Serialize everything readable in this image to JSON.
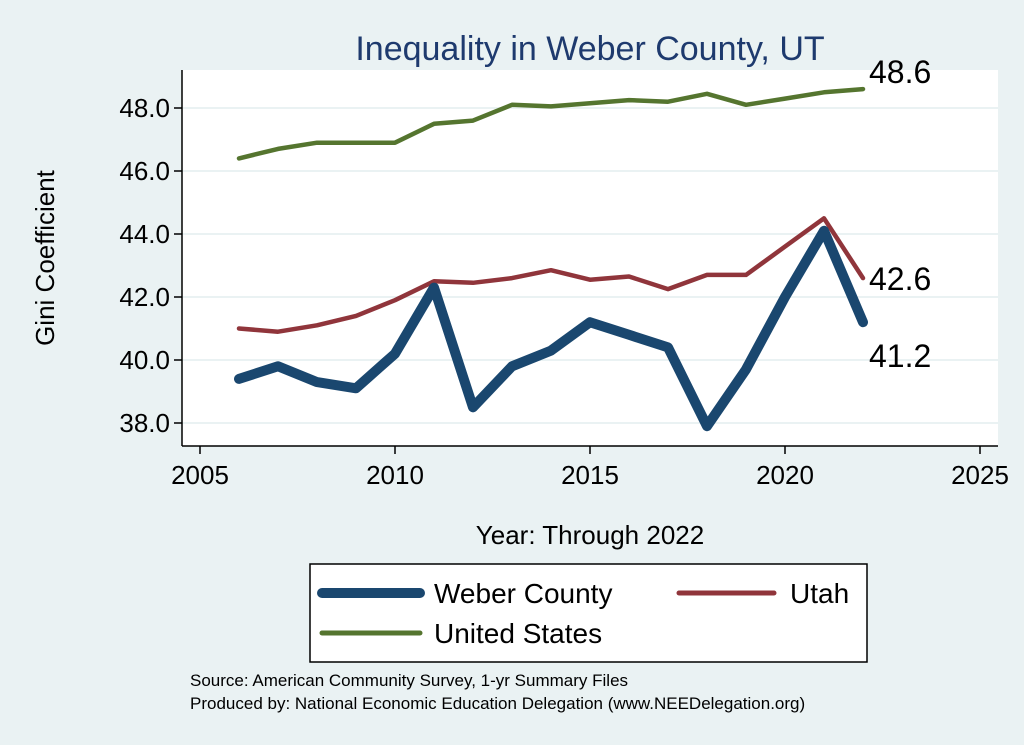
{
  "chart_data": {
    "type": "line",
    "title": "Inequality in Weber County, UT",
    "xlabel": "Year: Through 2022",
    "ylabel": "Gini Coefficient",
    "xlim": [
      2005,
      2025
    ],
    "ylim": [
      37.5,
      49.2
    ],
    "x_ticks": [
      2005,
      2010,
      2015,
      2020,
      2025
    ],
    "y_ticks": [
      38.0,
      40.0,
      42.0,
      44.0,
      46.0,
      48.0
    ],
    "grid": true,
    "legend_position": "bottom",
    "x": [
      2006,
      2007,
      2008,
      2009,
      2010,
      2011,
      2012,
      2013,
      2014,
      2015,
      2016,
      2017,
      2018,
      2019,
      2020,
      2021,
      2022
    ],
    "series": [
      {
        "name": "Weber County",
        "color": "#1a476f",
        "values": [
          39.4,
          39.8,
          39.3,
          39.1,
          40.2,
          42.3,
          38.5,
          39.8,
          40.3,
          41.2,
          40.8,
          40.4,
          37.9,
          39.7,
          42.0,
          44.1,
          41.2
        ],
        "end_label": "41.2"
      },
      {
        "name": "Utah",
        "color": "#90353b",
        "values": [
          41.0,
          40.9,
          41.1,
          41.4,
          41.9,
          42.5,
          42.45,
          42.6,
          42.85,
          42.55,
          42.65,
          42.25,
          42.7,
          42.7,
          43.6,
          44.5,
          42.6
        ],
        "end_label": "42.6"
      },
      {
        "name": "United States",
        "color": "#55752f",
        "values": [
          46.4,
          46.7,
          46.9,
          46.9,
          46.9,
          47.5,
          47.6,
          48.1,
          48.05,
          48.15,
          48.25,
          48.2,
          48.45,
          48.1,
          48.3,
          48.5,
          48.6
        ],
        "end_label": "48.6"
      }
    ]
  },
  "legend": {
    "items": [
      "Weber County",
      "Utah",
      "United States"
    ]
  },
  "footer": {
    "source": "Source: American Community Survey, 1-yr Summary Files",
    "produced": "Produced by: National Economic Education Delegation (www.NEEDelegation.org)"
  }
}
